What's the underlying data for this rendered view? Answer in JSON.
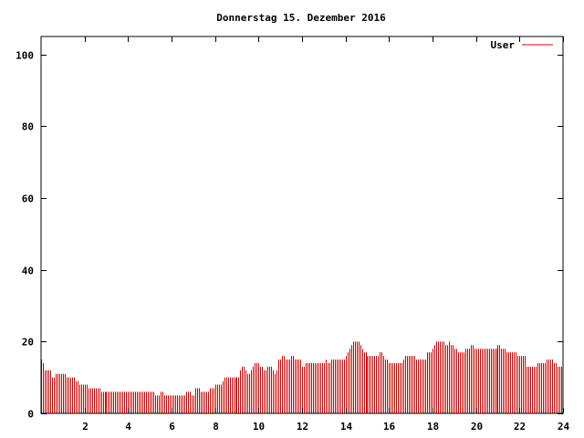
{
  "chart_data": {
    "type": "bar",
    "title": "Donnerstag 15. Dezember 2016",
    "xlabel": "",
    "ylabel": "",
    "xlim": [
      0,
      24
    ],
    "ylim": [
      0,
      105
    ],
    "xticks": [
      2,
      4,
      6,
      8,
      10,
      12,
      14,
      16,
      18,
      20,
      22,
      24
    ],
    "yticks": [
      0,
      20,
      40,
      60,
      80,
      100
    ],
    "grid": false,
    "legend": "top-right",
    "series_color": "#cc0000",
    "series": [
      {
        "name": "User",
        "x_start": 0,
        "x_step": 0.0833333,
        "values": [
          15,
          14,
          12,
          12,
          12,
          12,
          10,
          10,
          11,
          11,
          11,
          11,
          11,
          11,
          10,
          10,
          10,
          10,
          10,
          9,
          9,
          8,
          8,
          8,
          8,
          8,
          7,
          7,
          7,
          7,
          7,
          7,
          7,
          6,
          6,
          6,
          6,
          6,
          6,
          6,
          6,
          6,
          6,
          6,
          6,
          6,
          6,
          6,
          6,
          6,
          6,
          6,
          6,
          6,
          6,
          6,
          6,
          6,
          6,
          6,
          6,
          6,
          6,
          5,
          5,
          5,
          6,
          6,
          5,
          5,
          5,
          5,
          5,
          5,
          5,
          5,
          5,
          5,
          5,
          5,
          6,
          6,
          6,
          5,
          5,
          7,
          7,
          7,
          6,
          6,
          6,
          6,
          6,
          7,
          7,
          7,
          8,
          8,
          8,
          8,
          9,
          10,
          10,
          10,
          10,
          10,
          10,
          10,
          10,
          10,
          12,
          13,
          13,
          12,
          11,
          11,
          12,
          13,
          14,
          14,
          14,
          13,
          13,
          12,
          12,
          13,
          13,
          13,
          12,
          11,
          12,
          15,
          15,
          16,
          16,
          15,
          15,
          15,
          16,
          16,
          15,
          15,
          15,
          15,
          13,
          13,
          14,
          14,
          14,
          14,
          14,
          14,
          14,
          14,
          14,
          14,
          14,
          15,
          14,
          14,
          15,
          15,
          15,
          15,
          15,
          15,
          15,
          15,
          16,
          17,
          18,
          19,
          20,
          20,
          20,
          20,
          19,
          18,
          17,
          17,
          16,
          16,
          16,
          16,
          16,
          16,
          16,
          17,
          17,
          16,
          15,
          15,
          14,
          14,
          14,
          14,
          14,
          14,
          14,
          14,
          15,
          16,
          16,
          16,
          16,
          16,
          16,
          15,
          15,
          15,
          15,
          15,
          15,
          17,
          17,
          17,
          18,
          19,
          20,
          20,
          20,
          20,
          20,
          19,
          19,
          20,
          19,
          19,
          18,
          18,
          17,
          17,
          17,
          17,
          18,
          18,
          18,
          19,
          19,
          18,
          18,
          18,
          18,
          18,
          18,
          18,
          18,
          18,
          18,
          18,
          18,
          18,
          19,
          19,
          18,
          18,
          18,
          17,
          17,
          17,
          17,
          17,
          17,
          16,
          16,
          16,
          16,
          16,
          13,
          13,
          13,
          13,
          13,
          13,
          14,
          14,
          14,
          14,
          14,
          15,
          15,
          15,
          15,
          14,
          14,
          13,
          13,
          13,
          14,
          14,
          14,
          14,
          14,
          13,
          13,
          13,
          12,
          12,
          12
        ]
      }
    ]
  }
}
